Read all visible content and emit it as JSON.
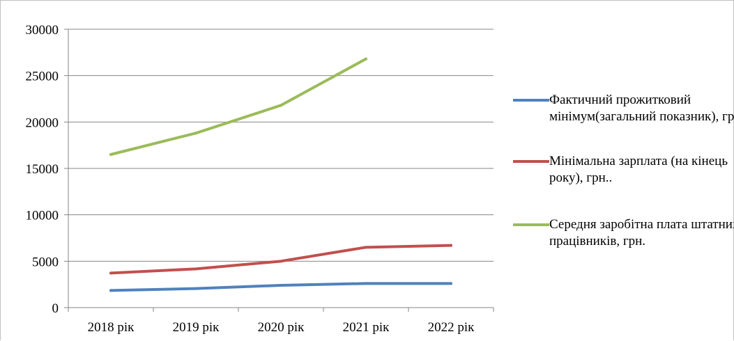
{
  "chart_data": {
    "type": "line",
    "categories": [
      "2018 рік",
      "2019 рік",
      "2020 рік",
      "2021 рік",
      "2022 рік"
    ],
    "ylim": [
      0,
      30000
    ],
    "yticks": [
      0,
      5000,
      10000,
      15000,
      20000,
      25000,
      30000
    ],
    "grid": true,
    "legend_position": "right",
    "series": [
      {
        "name": "Фактичний прожитковий мінімум(загальний показник), грн.",
        "color": "#4f81bd",
        "values": [
          1850,
          2050,
          2400,
          2600,
          2600
        ]
      },
      {
        "name": "Мінімальна зарплата (на кінець року), грн..",
        "color": "#c0504d",
        "values": [
          3723,
          4173,
          5000,
          6500,
          6700
        ]
      },
      {
        "name": "Середня заробітна плата штатних працівників, грн.",
        "color": "#9bbb59",
        "values": [
          16500,
          18800,
          21800,
          26800,
          null
        ]
      }
    ]
  }
}
